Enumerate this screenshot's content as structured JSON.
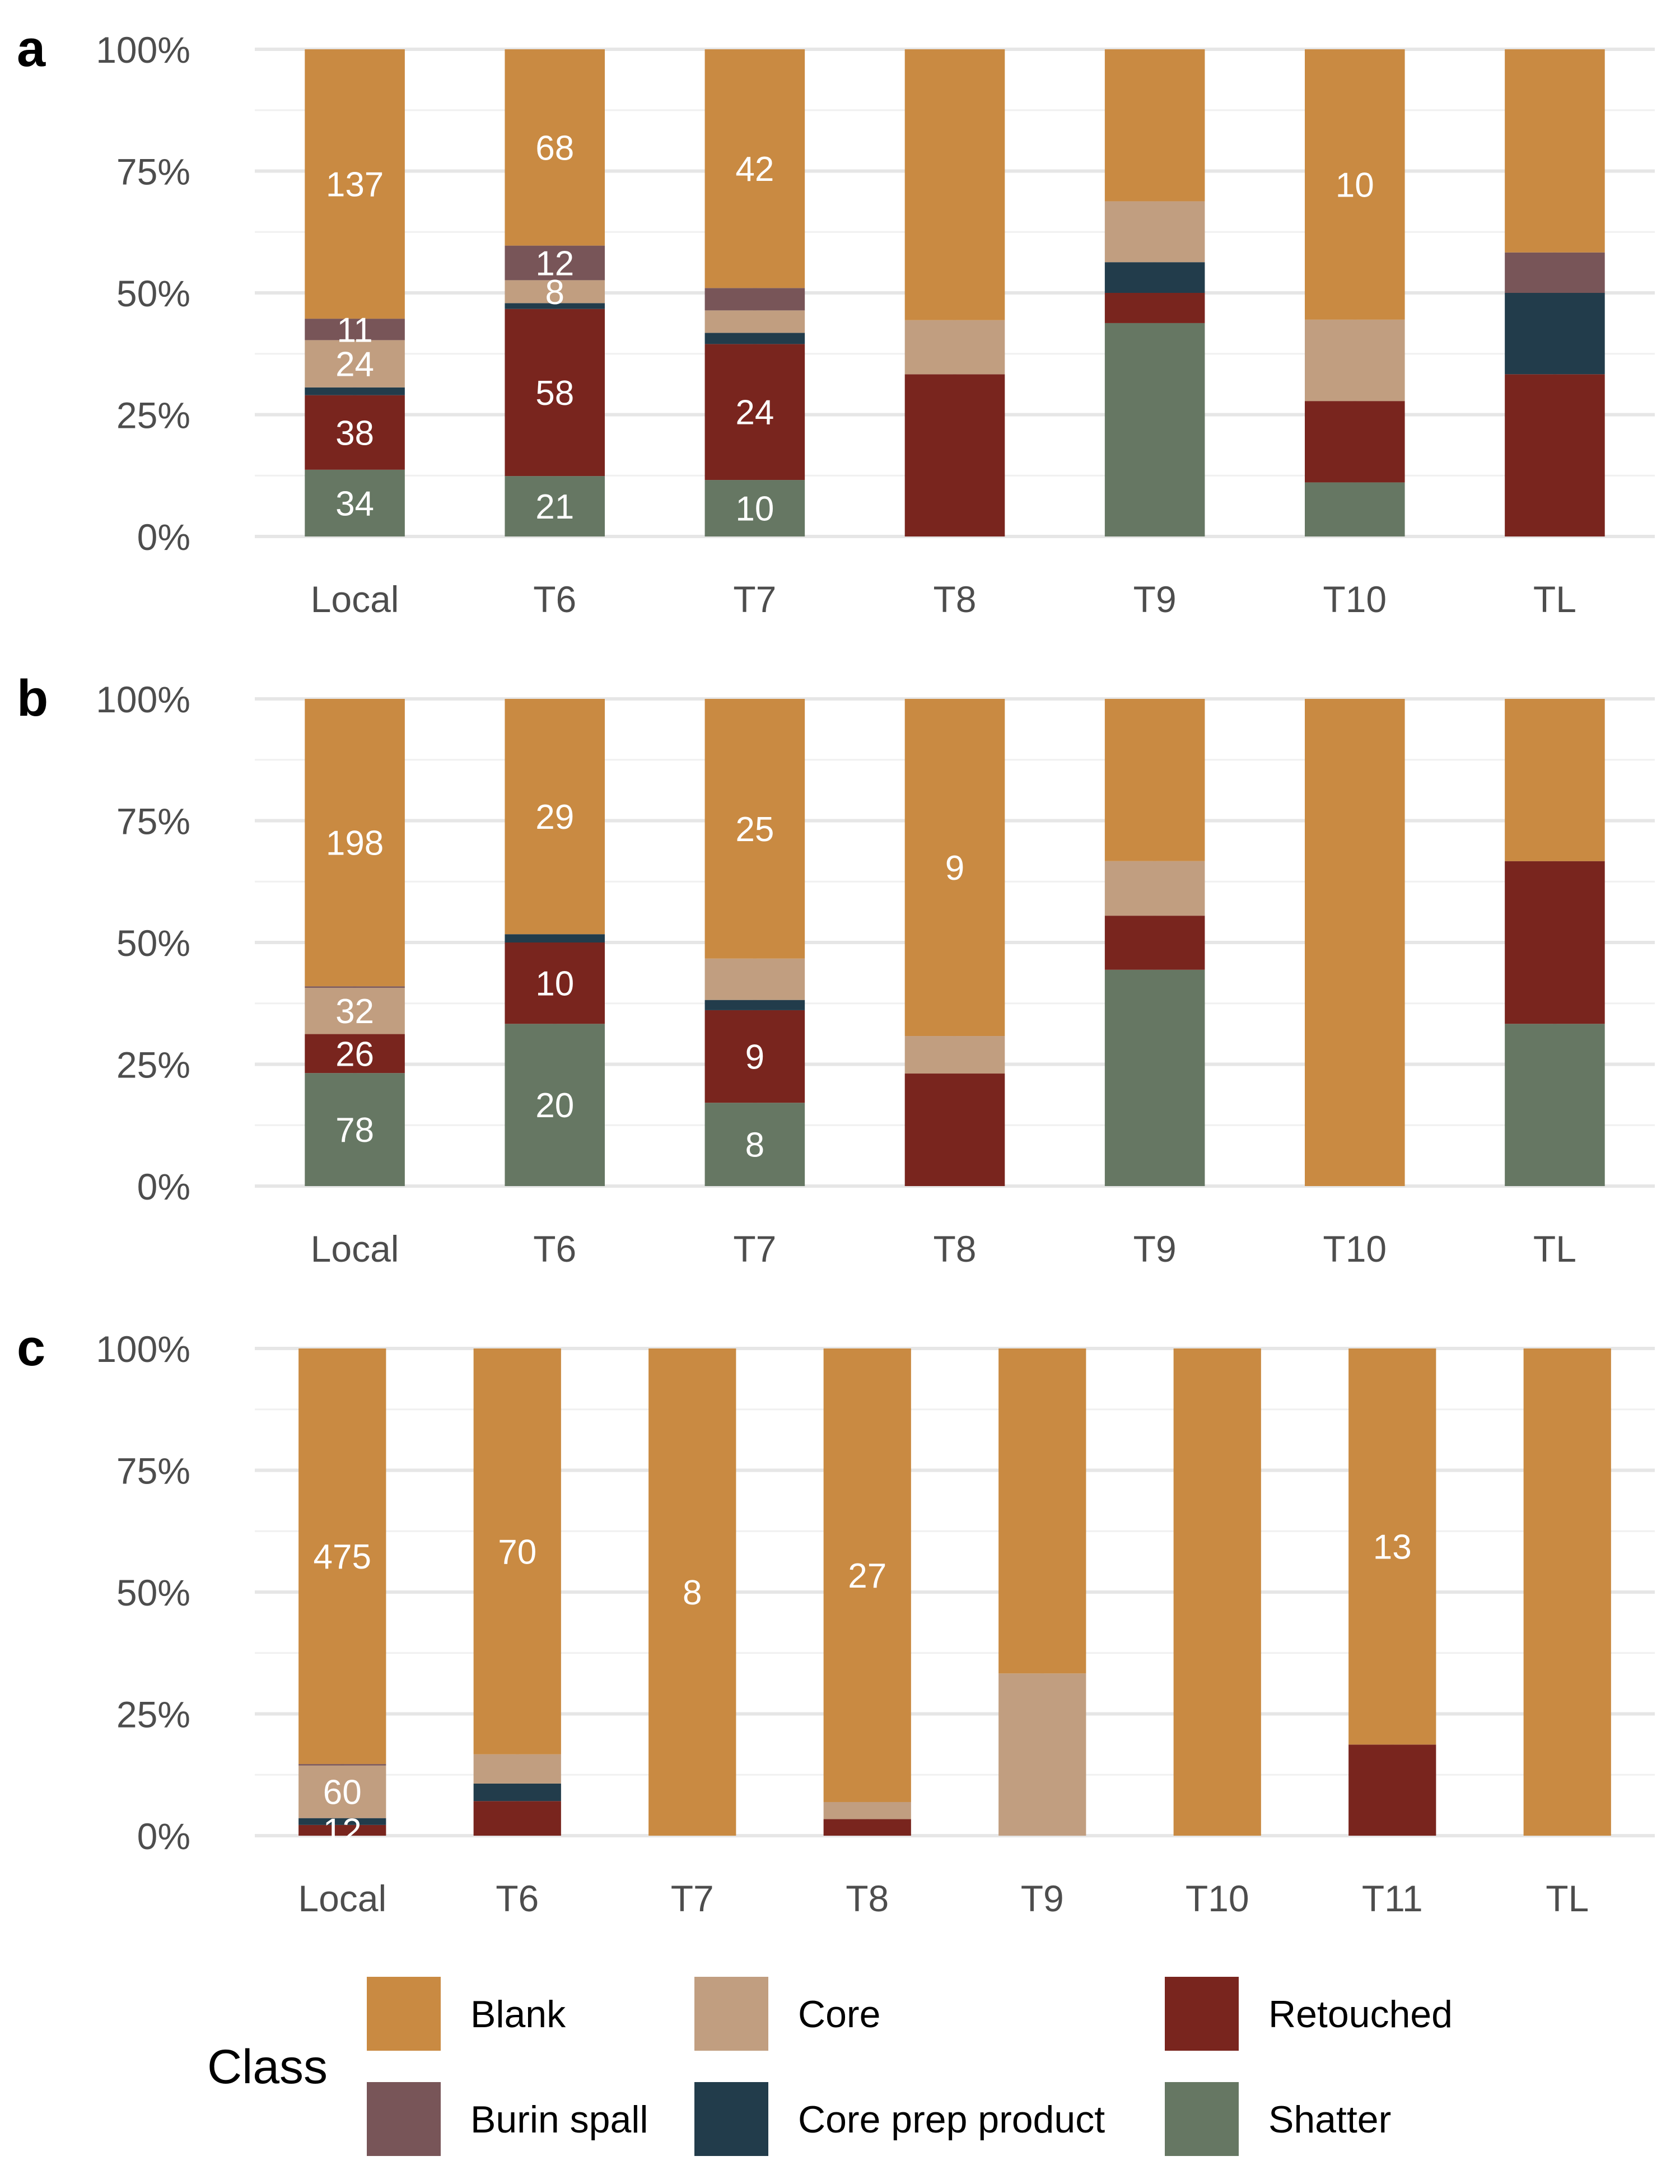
{
  "colors": {
    "Blank": "#c98a42",
    "Core": "#c19e80",
    "Retouched": "#79251e",
    "Burin spall": "#785558",
    "Core prep product": "#223c4b",
    "Shatter": "#667763",
    "grid": "#e6e6e6",
    "axis_text": "#4d4d4d",
    "bar_label": "#ffffff"
  },
  "legend": {
    "title": "Class",
    "entries": [
      "Blank",
      "Core",
      "Retouched",
      "Burin spall",
      "Core prep product",
      "Shatter"
    ]
  },
  "chart_data": [
    {
      "panel": "a",
      "type": "bar",
      "stacked": "percent",
      "categories": [
        "Local",
        "T6",
        "T7",
        "T8",
        "T9",
        "T10",
        "TL"
      ],
      "y_ticks": [
        "0%",
        "25%",
        "50%",
        "75%",
        "100%"
      ],
      "ylim": [
        0,
        100
      ],
      "grid": true,
      "series": [
        {
          "name": "Shatter",
          "values": [
            13.7,
            12.4,
            11.6,
            0,
            43.8,
            11.1,
            0
          ],
          "labels": [
            "34",
            "21",
            "10",
            "",
            "",
            "",
            ""
          ]
        },
        {
          "name": "Retouched",
          "values": [
            15.3,
            34.3,
            27.9,
            33.3,
            6.2,
            16.7,
            33.3
          ],
          "labels": [
            "38",
            "58",
            "24",
            "",
            "",
            "",
            ""
          ]
        },
        {
          "name": "Core prep product",
          "values": [
            1.6,
            1.2,
            2.3,
            0,
            6.3,
            0,
            16.7
          ],
          "labels": [
            "",
            "",
            "",
            "",
            "",
            "",
            ""
          ]
        },
        {
          "name": "Core",
          "values": [
            9.7,
            4.7,
            4.6,
            11.1,
            12.5,
            16.7,
            0
          ],
          "labels": [
            "24",
            "8",
            "",
            "",
            "",
            "",
            ""
          ]
        },
        {
          "name": "Burin spall",
          "values": [
            4.4,
            7.1,
            4.6,
            0,
            0,
            0,
            8.3
          ],
          "labels": [
            "11",
            "12",
            "",
            "",
            "",
            "",
            ""
          ]
        },
        {
          "name": "Blank",
          "values": [
            55.3,
            40.3,
            49.0,
            55.6,
            31.2,
            55.5,
            41.7
          ],
          "labels": [
            "137",
            "68",
            "42",
            "",
            "",
            "10",
            ""
          ]
        }
      ]
    },
    {
      "panel": "b",
      "type": "bar",
      "stacked": "percent",
      "categories": [
        "Local",
        "T6",
        "T7",
        "T8",
        "T9",
        "T10",
        "TL"
      ],
      "y_ticks": [
        "0%",
        "25%",
        "50%",
        "75%",
        "100%"
      ],
      "ylim": [
        0,
        100
      ],
      "grid": true,
      "series": [
        {
          "name": "Shatter",
          "values": [
            23.2,
            33.3,
            17.1,
            0,
            44.4,
            0,
            33.3
          ],
          "labels": [
            "78",
            "20",
            "8",
            "",
            "",
            "",
            ""
          ]
        },
        {
          "name": "Retouched",
          "values": [
            8.0,
            16.7,
            19.0,
            23.1,
            11.1,
            0,
            33.4
          ],
          "labels": [
            "26",
            "10",
            "9",
            "",
            "",
            "",
            ""
          ]
        },
        {
          "name": "Core prep product",
          "values": [
            0,
            1.7,
            2.1,
            0,
            0,
            0,
            0
          ],
          "labels": [
            "",
            "",
            "",
            "",
            "",
            "",
            ""
          ]
        },
        {
          "name": "Core",
          "values": [
            9.5,
            0,
            8.5,
            7.7,
            11.2,
            0,
            0
          ],
          "labels": [
            "32",
            "",
            "",
            "",
            "",
            "",
            ""
          ]
        },
        {
          "name": "Burin spall",
          "values": [
            0.3,
            0,
            0,
            0,
            0,
            0,
            0
          ],
          "labels": [
            "",
            "",
            "",
            "",
            "",
            "",
            ""
          ]
        },
        {
          "name": "Blank",
          "values": [
            59.0,
            48.3,
            53.3,
            69.2,
            33.3,
            100,
            33.3
          ],
          "labels": [
            "198",
            "29",
            "25",
            "9",
            "",
            "",
            ""
          ]
        }
      ]
    },
    {
      "panel": "c",
      "type": "bar",
      "stacked": "percent",
      "categories": [
        "Local",
        "T6",
        "T7",
        "T8",
        "T9",
        "T10",
        "T11",
        "TL"
      ],
      "y_ticks": [
        "0%",
        "25%",
        "50%",
        "75%",
        "100%"
      ],
      "ylim": [
        0,
        100
      ],
      "grid": true,
      "series": [
        {
          "name": "Shatter",
          "values": [
            0,
            0,
            0,
            0,
            0,
            0,
            0,
            0
          ],
          "labels": [
            "",
            "",
            "",
            "",
            "",
            "",
            "",
            ""
          ]
        },
        {
          "name": "Retouched",
          "values": [
            2.2,
            7.1,
            0,
            3.4,
            0,
            0,
            18.7,
            0
          ],
          "labels": [
            "12",
            "",
            "",
            "",
            "",
            "",
            "",
            ""
          ]
        },
        {
          "name": "Core prep product",
          "values": [
            1.4,
            3.6,
            0,
            0,
            0,
            0,
            0,
            0
          ],
          "labels": [
            "",
            "",
            "",
            "",
            "",
            "",
            "",
            ""
          ]
        },
        {
          "name": "Core",
          "values": [
            10.8,
            6.0,
            0,
            3.5,
            33.3,
            0,
            0,
            0
          ],
          "labels": [
            "60",
            "",
            "",
            "",
            "",
            "",
            "",
            ""
          ]
        },
        {
          "name": "Burin spall",
          "values": [
            0.3,
            0,
            0,
            0,
            0,
            0,
            0,
            0
          ],
          "labels": [
            "",
            "",
            "",
            "",
            "",
            "",
            "",
            ""
          ]
        },
        {
          "name": "Blank",
          "values": [
            85.3,
            83.3,
            100,
            93.1,
            66.7,
            100,
            81.3,
            100
          ],
          "labels": [
            "475",
            "70",
            "8",
            "27",
            "",
            "",
            "13",
            ""
          ]
        }
      ]
    }
  ]
}
